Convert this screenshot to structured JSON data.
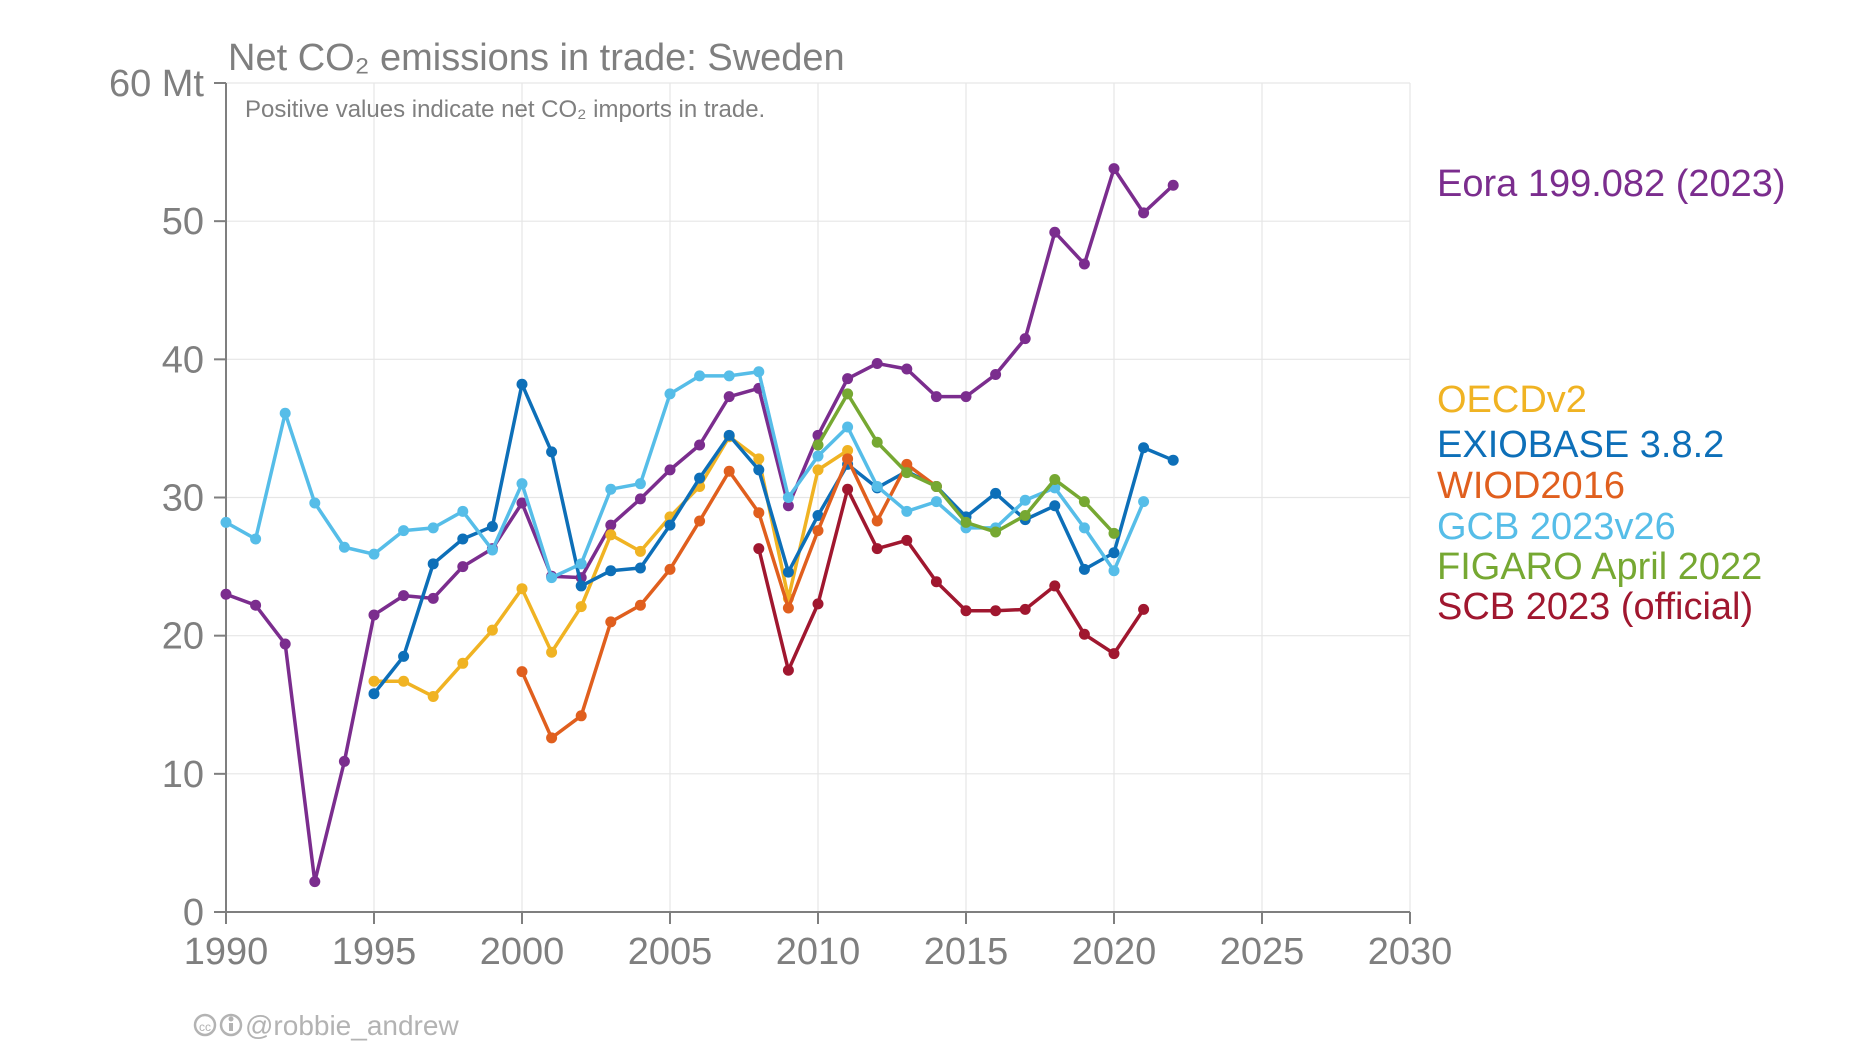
{
  "chart_data": {
    "type": "line",
    "title": "Net CO₂ emissions in trade: Sweden",
    "subtitle": "Positive values indicate net CO₂ imports in trade.",
    "xlabel": "",
    "ylabel": "",
    "y_unit_label": "60 Mt",
    "xlim": [
      1990,
      2030
    ],
    "ylim": [
      0,
      60
    ],
    "x_ticks": [
      1990,
      1995,
      2000,
      2005,
      2010,
      2015,
      2020,
      2025,
      2030
    ],
    "y_ticks": [
      0,
      10,
      20,
      30,
      40,
      50,
      60
    ],
    "y_tick_labels": [
      "0",
      "10",
      "20",
      "30",
      "40",
      "50",
      "60 Mt"
    ],
    "grid": true,
    "legend_position": "right",
    "credit": "@robbie_andrew",
    "series": [
      {
        "name": "Eora 199.082 (2023)",
        "color": "#7b2d8e",
        "x": [
          1990,
          1991,
          1992,
          1993,
          1994,
          1995,
          1996,
          1997,
          1998,
          1999,
          2000,
          2001,
          2002,
          2003,
          2004,
          2005,
          2006,
          2007,
          2008,
          2009,
          2010,
          2011,
          2012,
          2013,
          2014,
          2015,
          2016,
          2017,
          2018,
          2019,
          2020,
          2021,
          2022
        ],
        "y": [
          23.0,
          22.2,
          19.4,
          2.2,
          10.9,
          21.5,
          22.9,
          22.7,
          25.0,
          26.3,
          29.6,
          24.3,
          24.2,
          28.0,
          29.9,
          32.0,
          33.8,
          37.3,
          37.9,
          29.4,
          34.5,
          38.6,
          39.7,
          39.3,
          37.3,
          37.3,
          38.9,
          41.5,
          49.2,
          46.9,
          53.8,
          50.6,
          52.6
        ]
      },
      {
        "name": "OECDv2",
        "color": "#f0b323",
        "x": [
          1995,
          1996,
          1997,
          1998,
          1999,
          2000,
          2001,
          2002,
          2003,
          2004,
          2005,
          2006,
          2007,
          2008,
          2009,
          2010,
          2011
        ],
        "y": [
          16.7,
          16.7,
          15.6,
          18.0,
          20.4,
          23.4,
          18.8,
          22.1,
          27.3,
          26.1,
          28.6,
          30.8,
          34.4,
          32.8,
          22.7,
          32.0,
          33.4
        ]
      },
      {
        "name": "EXIOBASE 3.8.2",
        "color": "#0d6fb8",
        "x": [
          1995,
          1996,
          1997,
          1998,
          1999,
          2000,
          2001,
          2002,
          2003,
          2004,
          2005,
          2006,
          2007,
          2008,
          2009,
          2010,
          2011,
          2012,
          2013,
          2014,
          2015,
          2016,
          2017,
          2018,
          2019,
          2020,
          2021,
          2022
        ],
        "y": [
          15.8,
          18.5,
          25.2,
          27.0,
          27.9,
          38.2,
          33.3,
          23.6,
          24.7,
          24.9,
          28.0,
          31.4,
          34.5,
          32.0,
          24.6,
          28.7,
          32.4,
          30.7,
          31.9,
          30.8,
          28.6,
          30.3,
          28.4,
          29.4,
          24.8,
          26.0,
          33.6,
          32.7
        ]
      },
      {
        "name": "WIOD2016",
        "color": "#e05f1e",
        "x": [
          2000,
          2001,
          2002,
          2003,
          2004,
          2005,
          2006,
          2007,
          2008,
          2009,
          2010,
          2011,
          2012,
          2013,
          2014
        ],
        "y": [
          17.4,
          12.6,
          14.2,
          21.0,
          22.2,
          24.8,
          28.3,
          31.9,
          28.9,
          22.0,
          27.6,
          32.8,
          28.3,
          32.4,
          30.8
        ]
      },
      {
        "name": "GCB 2023v26",
        "color": "#56bde8",
        "x": [
          1990,
          1991,
          1992,
          1993,
          1994,
          1995,
          1996,
          1997,
          1998,
          1999,
          2000,
          2001,
          2002,
          2003,
          2004,
          2005,
          2006,
          2007,
          2008,
          2009,
          2010,
          2011,
          2012,
          2013,
          2014,
          2015,
          2016,
          2017,
          2018,
          2019,
          2020,
          2021
        ],
        "y": [
          28.2,
          27.0,
          36.1,
          29.6,
          26.4,
          25.9,
          27.6,
          27.8,
          29.0,
          26.2,
          31.0,
          24.2,
          25.2,
          30.6,
          31.0,
          37.5,
          38.8,
          38.8,
          39.1,
          30.0,
          33.0,
          35.1,
          30.8,
          29.0,
          29.7,
          27.8,
          27.8,
          29.8,
          30.7,
          27.8,
          24.7,
          29.7
        ]
      },
      {
        "name": "FIGARO April 2022",
        "color": "#76a832",
        "x": [
          2010,
          2011,
          2012,
          2013,
          2014,
          2015,
          2016,
          2017,
          2018,
          2019,
          2020
        ],
        "y": [
          33.8,
          37.5,
          34.0,
          31.8,
          30.8,
          28.2,
          27.5,
          28.7,
          31.3,
          29.7,
          27.4
        ]
      },
      {
        "name": "SCB 2023 (official)",
        "color": "#a0172f",
        "x": [
          2008,
          2009,
          2010,
          2011,
          2012,
          2013,
          2014,
          2015,
          2016,
          2017,
          2018,
          2019,
          2020,
          2021
        ],
        "y": [
          26.3,
          17.5,
          22.3,
          30.6,
          26.3,
          26.9,
          23.9,
          21.8,
          21.8,
          21.9,
          23.6,
          20.1,
          18.7,
          21.9
        ]
      }
    ]
  }
}
